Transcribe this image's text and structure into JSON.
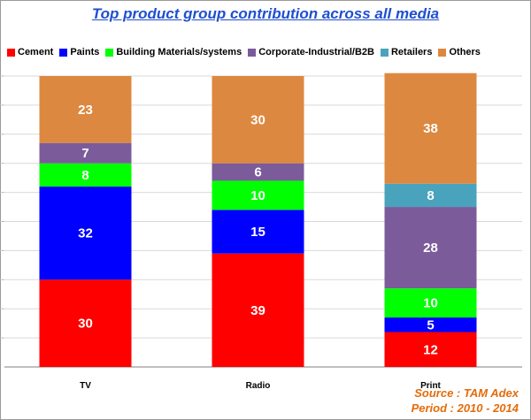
{
  "chart_data": {
    "type": "bar",
    "stacked": true,
    "title": "Top product group contribution across all media",
    "categories": [
      "TV",
      "Radio",
      "Print"
    ],
    "series": [
      {
        "name": "Cement",
        "color": "#ff0000",
        "values": [
          30,
          39,
          12
        ]
      },
      {
        "name": "Paints",
        "color": "#0000ff",
        "values": [
          32,
          15,
          5
        ]
      },
      {
        "name": "Building Materials/systems",
        "color": "#00ff00",
        "values": [
          8,
          10,
          10
        ]
      },
      {
        "name": "Corporate-Industrial/B2B",
        "color": "#7c5b9a",
        "values": [
          7,
          6,
          28
        ]
      },
      {
        "name": "Retailers",
        "color": "#4aa3bd",
        "values": [
          0,
          0,
          8
        ]
      },
      {
        "name": "Others",
        "color": "#dd8840",
        "values": [
          23,
          30,
          38
        ]
      }
    ],
    "ylim": [
      0,
      100
    ],
    "grid": true,
    "legend_position": "top"
  },
  "source": {
    "line1": "Source : TAM Adex",
    "line2": "Period : 2010 -  2014"
  }
}
